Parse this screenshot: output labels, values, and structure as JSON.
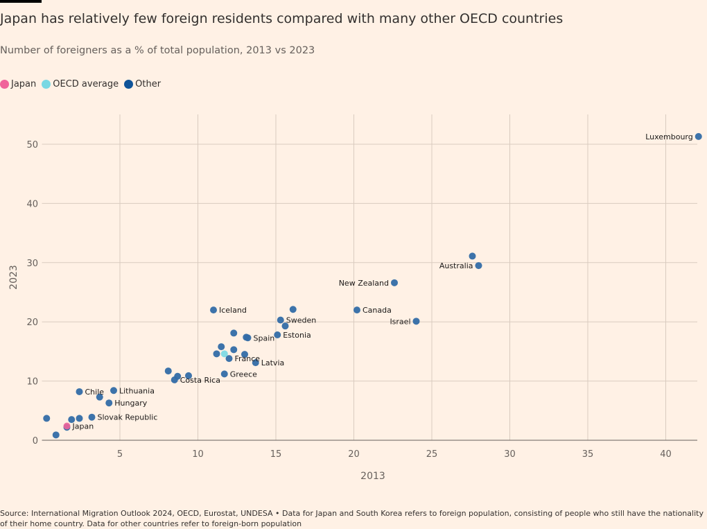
{
  "title": "Japan has relatively few foreign residents compared with many other OECD countries",
  "subtitle": "Number of foreigners as a % of total population, 2013 vs 2023",
  "legend": [
    {
      "label": "Japan",
      "color": "#f0639a"
    },
    {
      "label": "OECD average",
      "color": "#78d8e3"
    },
    {
      "label": "Other",
      "color": "#0f5499"
    }
  ],
  "source": "Source: International Migration Outlook 2024, OECD, Eurostat, UNDESA • Data for Japan and South Korea refers to foreign population, consisting of people who still have the nationality of their home country. Data for other countries refer to foreign-born population",
  "chart_data": {
    "type": "scatter",
    "xlabel": "2013",
    "ylabel": "2023",
    "xlim": [
      0,
      42
    ],
    "ylim": [
      0,
      55
    ],
    "xticks": [
      5,
      10,
      15,
      20,
      25,
      30,
      35,
      40
    ],
    "yticks": [
      0,
      10,
      20,
      30,
      40,
      50
    ],
    "grid": true,
    "legend_placement": "top-left",
    "colors": {
      "Japan": "#f0639a",
      "OECD average": "#78d8e3",
      "Other": "#336ba6"
    },
    "points": [
      {
        "x": 0.3,
        "y": 3.7,
        "group": "Other",
        "label": ""
      },
      {
        "x": 0.9,
        "y": 0.9,
        "group": "Other",
        "label": ""
      },
      {
        "x": 1.6,
        "y": 2.2,
        "group": "Other",
        "label": ""
      },
      {
        "x": 1.9,
        "y": 3.5,
        "group": "Other",
        "label": ""
      },
      {
        "x": 2.4,
        "y": 3.7,
        "group": "Other",
        "label": ""
      },
      {
        "x": 3.2,
        "y": 3.9,
        "group": "Other",
        "label": "Slovak Republic"
      },
      {
        "x": 2.4,
        "y": 8.2,
        "group": "Other",
        "label": "Chile"
      },
      {
        "x": 3.7,
        "y": 7.3,
        "group": "Other",
        "label": ""
      },
      {
        "x": 4.3,
        "y": 6.3,
        "group": "Other",
        "label": "Hungary"
      },
      {
        "x": 4.6,
        "y": 8.4,
        "group": "Other",
        "label": "Lithuania"
      },
      {
        "x": 8.1,
        "y": 11.7,
        "group": "Other",
        "label": ""
      },
      {
        "x": 8.7,
        "y": 10.8,
        "group": "Other",
        "label": ""
      },
      {
        "x": 9.4,
        "y": 10.9,
        "group": "Other",
        "label": ""
      },
      {
        "x": 8.5,
        "y": 10.2,
        "group": "Other",
        "label": "Costa Rica"
      },
      {
        "x": 11.0,
        "y": 22.0,
        "group": "Other",
        "label": "Iceland"
      },
      {
        "x": 11.2,
        "y": 14.6,
        "group": "Other",
        "label": ""
      },
      {
        "x": 11.5,
        "y": 15.8,
        "group": "Other",
        "label": ""
      },
      {
        "x": 12.0,
        "y": 13.8,
        "group": "Other",
        "label": "France"
      },
      {
        "x": 12.3,
        "y": 18.1,
        "group": "Other",
        "label": ""
      },
      {
        "x": 12.3,
        "y": 15.3,
        "group": "Other",
        "label": ""
      },
      {
        "x": 13.0,
        "y": 14.5,
        "group": "Other",
        "label": ""
      },
      {
        "x": 13.1,
        "y": 17.4,
        "group": "Other",
        "label": ""
      },
      {
        "x": 13.2,
        "y": 17.3,
        "group": "Other",
        "label": "Spain"
      },
      {
        "x": 13.7,
        "y": 13.1,
        "group": "Other",
        "label": "Latvia"
      },
      {
        "x": 11.7,
        "y": 11.2,
        "group": "Other",
        "label": "Greece"
      },
      {
        "x": 15.1,
        "y": 17.8,
        "group": "Other",
        "label": "Estonia"
      },
      {
        "x": 15.3,
        "y": 20.3,
        "group": "Other",
        "label": "Sweden"
      },
      {
        "x": 15.6,
        "y": 19.3,
        "group": "Other",
        "label": ""
      },
      {
        "x": 16.1,
        "y": 22.1,
        "group": "Other",
        "label": ""
      },
      {
        "x": 20.2,
        "y": 22.0,
        "group": "Other",
        "label": "Canada"
      },
      {
        "x": 22.6,
        "y": 26.6,
        "group": "Other",
        "label": "New Zealand",
        "label_side": "left"
      },
      {
        "x": 24.0,
        "y": 20.1,
        "group": "Other",
        "label": "Israel",
        "label_side": "left"
      },
      {
        "x": 27.6,
        "y": 31.1,
        "group": "Other",
        "label": ""
      },
      {
        "x": 28.0,
        "y": 29.5,
        "group": "Other",
        "label": "Australia",
        "label_side": "left"
      },
      {
        "x": 42.1,
        "y": 51.3,
        "group": "Other",
        "label": "Luxembourg",
        "label_side": "left"
      },
      {
        "x": 11.7,
        "y": 14.6,
        "group": "OECD average",
        "label": ""
      },
      {
        "x": 1.6,
        "y": 2.4,
        "group": "Japan",
        "label": "Japan"
      }
    ]
  }
}
